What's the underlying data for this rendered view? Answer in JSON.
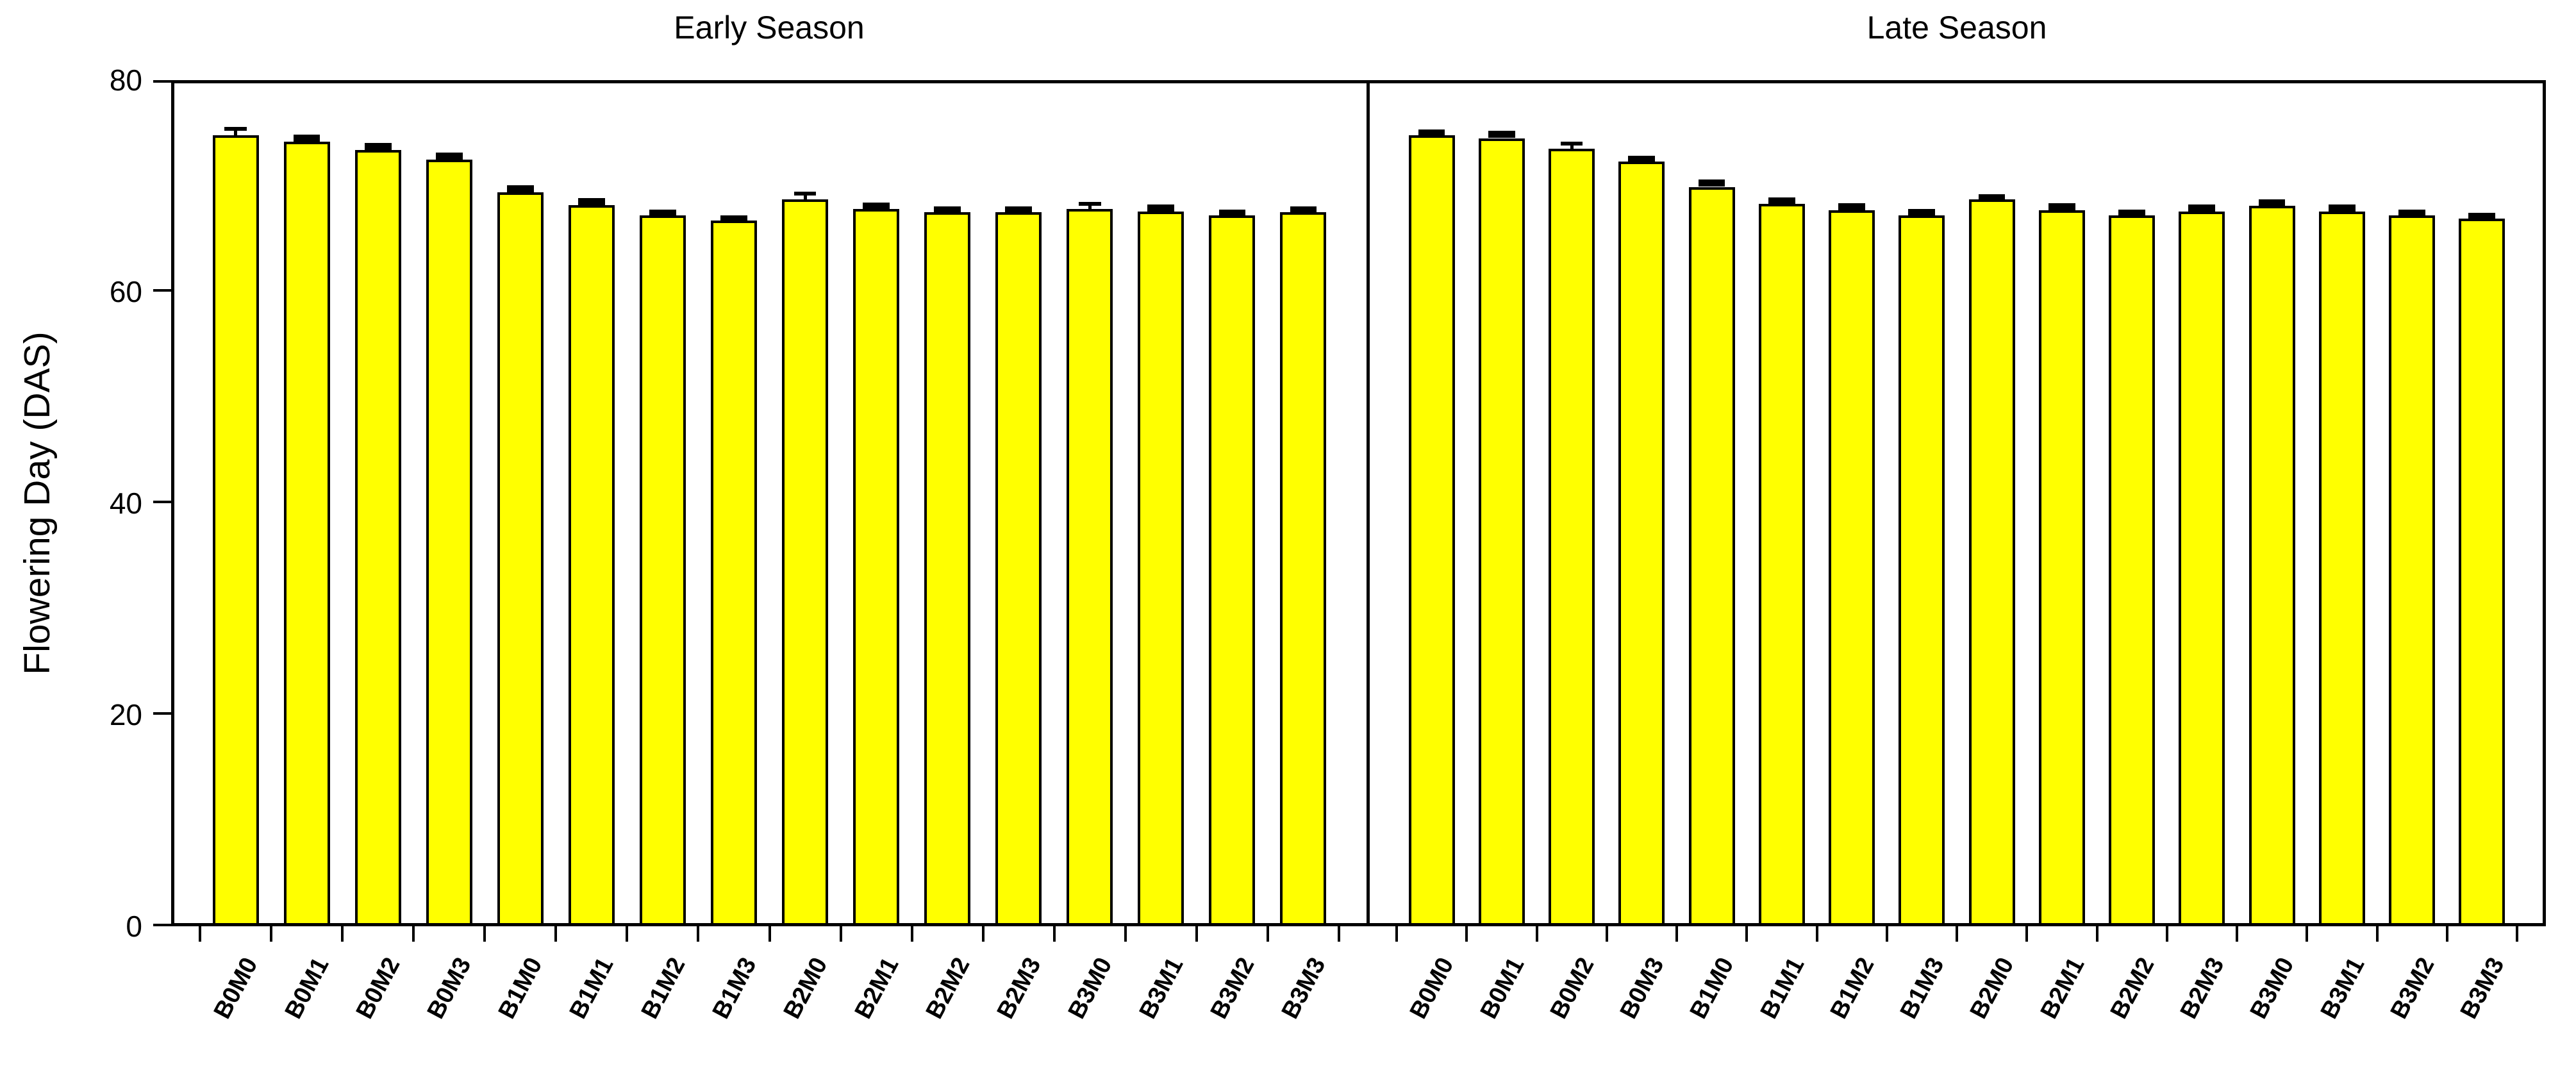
{
  "page": {
    "background": "#FFFFFF"
  },
  "chart_data": {
    "type": "bar",
    "title": "",
    "ylabel": "Flowering Day (DAS)",
    "xlabel": "",
    "ylim": [
      0,
      80
    ],
    "yticks": [
      0,
      20,
      40,
      60,
      80
    ],
    "grid": false,
    "legend_position": "none",
    "bar_fill": "#FFFF00",
    "bar_stroke": "#000000",
    "error_bar_color": "#000000",
    "x_tick_label_rotation_deg": 62,
    "categories": [
      "B0M0",
      "B0M1",
      "B0M2",
      "B0M3",
      "B1M0",
      "B1M1",
      "B1M2",
      "B1M3",
      "B2M0",
      "B2M1",
      "B2M2",
      "B2M3",
      "B3M0",
      "B3M1",
      "B3M2",
      "B3M3"
    ],
    "panels": [
      {
        "title": "Early Season",
        "values": [
          74.8,
          74.2,
          73.4,
          72.5,
          69.4,
          68.2,
          67.2,
          66.7,
          68.7,
          67.8,
          67.5,
          67.5,
          67.8,
          67.6,
          67.2,
          67.5
        ],
        "errors": [
          0.6,
          0.15,
          0.15,
          0.15,
          0.15,
          0.15,
          0.1,
          0.05,
          0.55,
          0.15,
          0.1,
          0.1,
          0.5,
          0.15,
          0.05,
          0.1
        ]
      },
      {
        "title": "Late Season",
        "values": [
          74.8,
          74.5,
          73.5,
          72.3,
          69.9,
          68.3,
          67.7,
          67.2,
          68.7,
          67.7,
          67.2,
          67.6,
          68.1,
          67.6,
          67.2,
          66.9
        ],
        "errors": [
          0.05,
          0.2,
          0.5,
          0.05,
          0.25,
          0.1,
          0.15,
          0.15,
          0.05,
          0.15,
          0.1,
          0.15,
          0.15,
          0.15,
          0.1,
          0.1
        ]
      }
    ]
  }
}
